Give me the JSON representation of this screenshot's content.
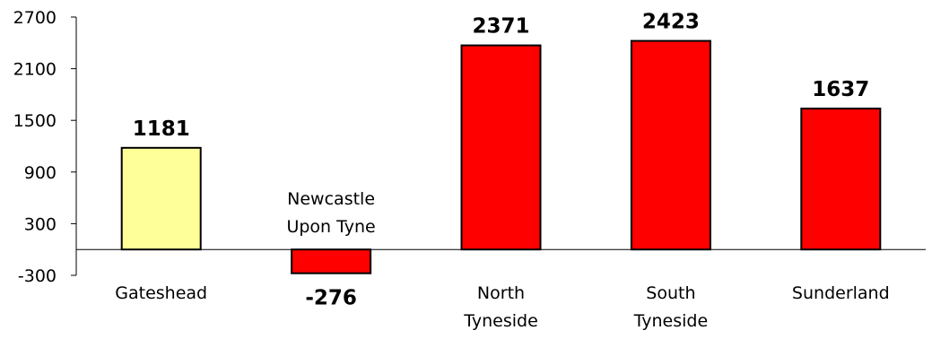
{
  "chart_data": {
    "type": "bar",
    "categories": [
      [
        "Gateshead"
      ],
      [
        "Newcastle",
        "Upon Tyne"
      ],
      [
        "North",
        "Tyneside"
      ],
      [
        "South",
        "Tyneside"
      ],
      [
        "Sunderland"
      ]
    ],
    "values": [
      1181,
      -276,
      2371,
      2423,
      1637
    ],
    "data_labels": [
      "1181",
      "-276",
      "2371",
      "2423",
      "1637"
    ],
    "bar_colors": [
      "#ffff99",
      "#ff0000",
      "#ff0000",
      "#ff0000",
      "#ff0000"
    ],
    "bar_outline_color": "#000000",
    "ylim": [
      -300,
      2700
    ],
    "yticks": [
      -300,
      300,
      900,
      1500,
      2100,
      2700
    ],
    "ytick_labels": [
      "-300",
      "300",
      "900",
      "1500",
      "2100",
      "2700"
    ],
    "grid": false,
    "legend": "none",
    "title": "",
    "xlabel": "",
    "ylabel": ""
  }
}
